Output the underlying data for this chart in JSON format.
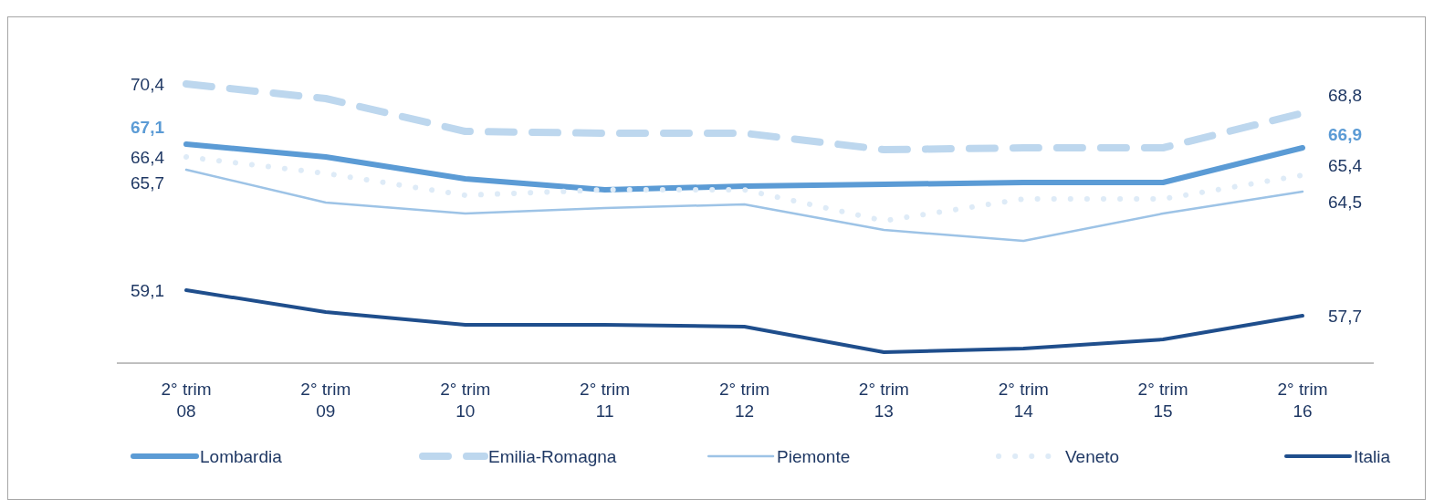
{
  "chart_data": {
    "type": "line",
    "categories": [
      "2° trim 08",
      "2° trim 09",
      "2° trim 10",
      "2° trim 11",
      "2° trim 12",
      "2° trim 13",
      "2° trim 14",
      "2° trim 15",
      "2° trim 16"
    ],
    "tick_labels": "x",
    "legend": "bottom",
    "marker": "none",
    "series": [
      {
        "name": "Lombardia",
        "color": "#5b9bd5",
        "line_style": "solid",
        "values": [
          67.1,
          66.4,
          65.2,
          64.6,
          64.8,
          64.9,
          65.0,
          65.0,
          66.9
        ],
        "value_labels": [
          "67,1",
          null,
          null,
          null,
          null,
          null,
          null,
          null,
          "66,9"
        ]
      },
      {
        "name": "Emilia-Romagna",
        "color": "#bdd7ee",
        "line_style": "dashed",
        "values": [
          70.4,
          69.6,
          67.8,
          67.7,
          67.7,
          66.8,
          66.9,
          66.9,
          68.8
        ],
        "value_labels": [
          "70,4",
          null,
          null,
          null,
          null,
          null,
          null,
          null,
          "68,8"
        ]
      },
      {
        "name": "Piemonte",
        "color": "#9dc3e6",
        "line_style": "solid",
        "values": [
          65.7,
          63.9,
          63.3,
          63.6,
          63.8,
          62.4,
          61.8,
          63.3,
          64.5
        ],
        "value_labels": [
          "65,7",
          null,
          null,
          null,
          null,
          null,
          null,
          null,
          "64,5"
        ]
      },
      {
        "name": "Veneto",
        "color": "#deebf7",
        "line_style": "dotted",
        "values": [
          66.4,
          65.5,
          64.3,
          64.6,
          64.6,
          62.9,
          64.1,
          64.1,
          65.4
        ],
        "value_labels": [
          "66,4",
          null,
          null,
          null,
          null,
          null,
          null,
          null,
          "65,4"
        ]
      },
      {
        "name": "Italia",
        "color": "#1f4e8c",
        "line_style": "solid",
        "values": [
          59.1,
          57.9,
          57.2,
          57.2,
          57.1,
          55.7,
          55.9,
          56.4,
          57.7
        ],
        "value_labels": [
          "59,1",
          null,
          null,
          null,
          null,
          null,
          null,
          null,
          "57,7"
        ]
      }
    ]
  }
}
